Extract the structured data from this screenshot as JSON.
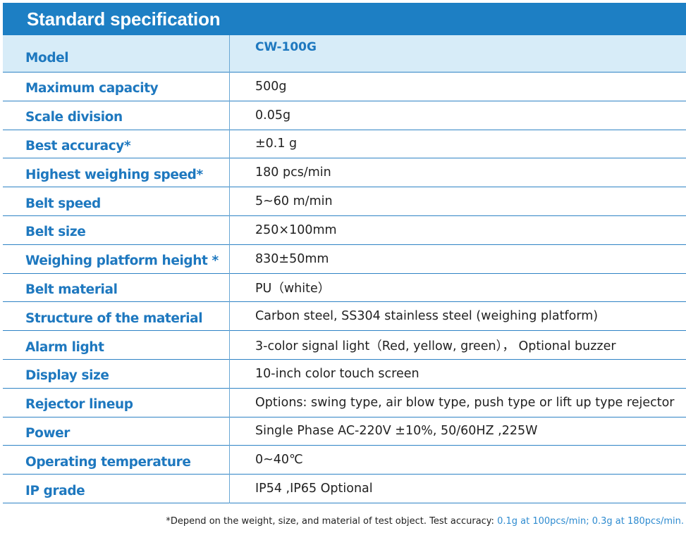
{
  "header": {
    "title": "Standard specification"
  },
  "specs": [
    {
      "label": "Model",
      "value": "CW-100G"
    },
    {
      "label": "Maximum capacity",
      "value": "500g"
    },
    {
      "label": "Scale division",
      "value": "0.05g"
    },
    {
      "label": "Best accuracy*",
      "value": "±0.1 g"
    },
    {
      "label": "Highest weighing speed*",
      "value": "180 pcs/min"
    },
    {
      "label": "Belt speed",
      "value": "5~60 m/min"
    },
    {
      "label": "Belt size",
      "value": "250×100mm"
    },
    {
      "label": "Weighing platform height *",
      "value": "830±50mm"
    },
    {
      "label": "Belt material",
      "value": "PU（white）"
    },
    {
      "label": "Structure of the material",
      "value": "Carbon steel, SS304 stainless steel (weighing platform)"
    },
    {
      "label": "Alarm light",
      "value": "3-color signal light（Red, yellow, green）， Optional buzzer"
    },
    {
      "label": "Display size",
      "value": "10-inch color touch screen"
    },
    {
      "label": "Rejector lineup",
      "value": "Options: swing type, air blow type, push type or lift up type rejector"
    },
    {
      "label": "Power",
      "value": "Single Phase AC-220V ±10%, 50/60HZ ,225W"
    },
    {
      "label": "Operating temperature",
      "value": "0~40℃"
    },
    {
      "label": "IP grade",
      "value": "IP54 ,IP65 Optional"
    }
  ],
  "footnote": {
    "text": "*Depend on the weight, size, and material of test object. Test accuracy: ",
    "highlight": "0.1g at 100pcs/min; 0.3g at 180pcs/min."
  },
  "colors": {
    "header_bg": "#1d7fc4",
    "label_text": "#1e78bf",
    "first_row_bg": "#d7ecf8",
    "divider": "#2e83c5"
  }
}
